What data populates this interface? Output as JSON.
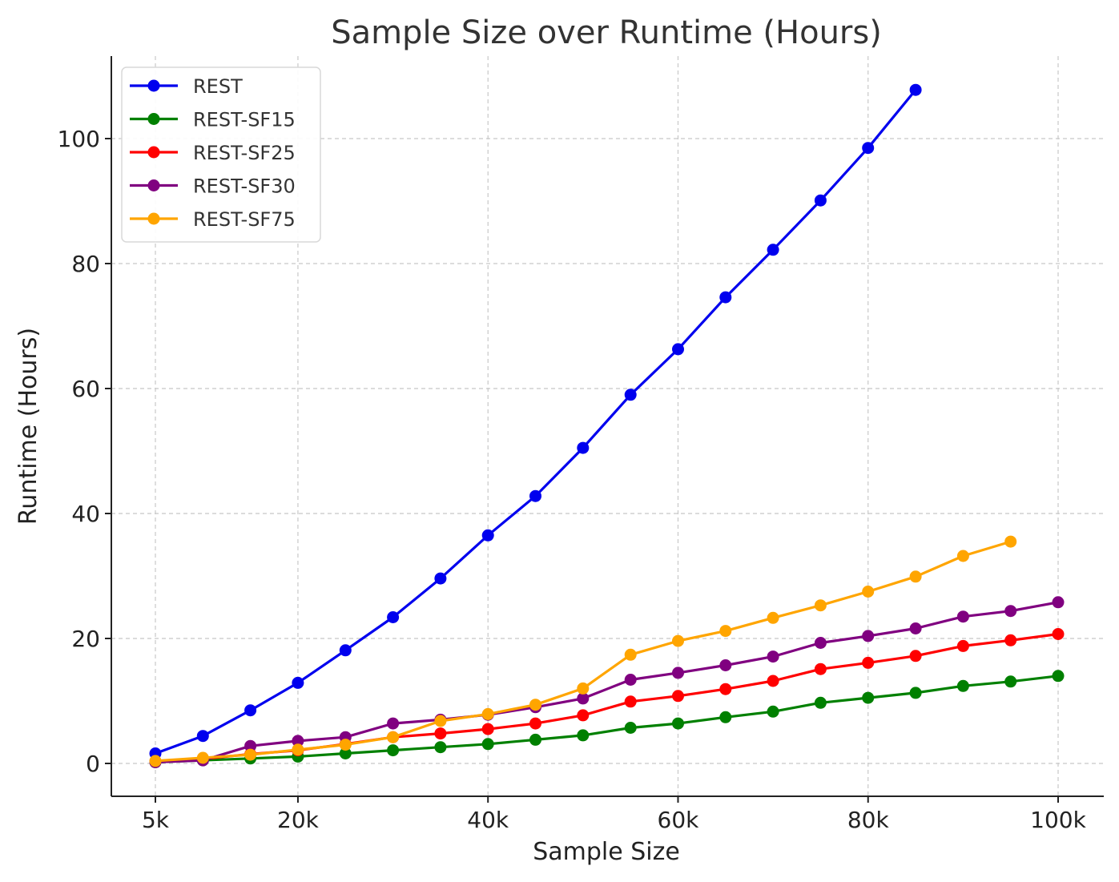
{
  "chart_data": {
    "type": "line",
    "title": "Sample Size over Runtime (Hours)",
    "xlabel": "Sample Size",
    "ylabel": "Runtime (Hours)",
    "xlim": [
      0,
      100000
    ],
    "ylim": [
      -5,
      113
    ],
    "x_ticks": [
      {
        "value": 5000,
        "label": "5k"
      },
      {
        "value": 20000,
        "label": "20k"
      },
      {
        "value": 40000,
        "label": "40k"
      },
      {
        "value": 60000,
        "label": "60k"
      },
      {
        "value": 80000,
        "label": "80k"
      },
      {
        "value": 100000,
        "label": "100k"
      }
    ],
    "y_ticks": [
      {
        "value": 0,
        "label": "0"
      },
      {
        "value": 20,
        "label": "20"
      },
      {
        "value": 40,
        "label": "40"
      },
      {
        "value": 60,
        "label": "60"
      },
      {
        "value": 80,
        "label": "80"
      },
      {
        "value": 100,
        "label": "100"
      }
    ],
    "x_gridlines": [
      5000,
      20000,
      40000,
      60000,
      80000,
      100000
    ],
    "y_gridlines": [
      0,
      20,
      40,
      60,
      80,
      100
    ],
    "grid": true,
    "legend_position": "top-left",
    "series": [
      {
        "name": "REST",
        "color": "#0000ee",
        "x": [
          5000,
          10000,
          15000,
          20000,
          25000,
          30000,
          35000,
          40000,
          45000,
          50000,
          55000,
          60000,
          65000,
          70000,
          75000,
          80000,
          85000
        ],
        "y": [
          1.6,
          4.4,
          8.5,
          12.9,
          18.1,
          23.4,
          29.6,
          36.5,
          42.8,
          50.5,
          59.0,
          66.3,
          74.6,
          82.2,
          90.1,
          98.5,
          107.8
        ]
      },
      {
        "name": "REST-SF15",
        "color": "#008000",
        "x": [
          5000,
          10000,
          15000,
          20000,
          25000,
          30000,
          35000,
          40000,
          45000,
          50000,
          55000,
          60000,
          65000,
          70000,
          75000,
          80000,
          85000,
          90000,
          95000,
          100000
        ],
        "y": [
          0.2,
          0.5,
          0.8,
          1.1,
          1.6,
          2.1,
          2.6,
          3.1,
          3.8,
          4.5,
          5.7,
          6.4,
          7.4,
          8.3,
          9.7,
          10.5,
          11.3,
          12.4,
          13.1,
          14.0
        ]
      },
      {
        "name": "REST-SF25",
        "color": "#ff0000",
        "x": [
          5000,
          10000,
          15000,
          20000,
          25000,
          30000,
          35000,
          40000,
          45000,
          50000,
          55000,
          60000,
          65000,
          70000,
          75000,
          80000,
          85000,
          90000,
          95000,
          100000
        ],
        "y": [
          0.3,
          0.7,
          1.5,
          2.1,
          3.1,
          4.2,
          4.8,
          5.5,
          6.4,
          7.7,
          9.9,
          10.8,
          11.9,
          13.2,
          15.1,
          16.1,
          17.2,
          18.8,
          19.7,
          20.7
        ]
      },
      {
        "name": "REST-SF30",
        "color": "#800080",
        "x": [
          5000,
          10000,
          15000,
          20000,
          25000,
          30000,
          35000,
          40000,
          45000,
          50000,
          55000,
          60000,
          65000,
          70000,
          75000,
          80000,
          85000,
          90000,
          95000,
          100000
        ],
        "y": [
          0.2,
          0.5,
          2.8,
          3.6,
          4.2,
          6.4,
          7.0,
          7.8,
          9.0,
          10.4,
          13.4,
          14.5,
          15.7,
          17.1,
          19.3,
          20.4,
          21.6,
          23.5,
          24.4,
          25.8
        ]
      },
      {
        "name": "REST-SF75",
        "color": "#ffa500",
        "x": [
          5000,
          10000,
          15000,
          20000,
          25000,
          30000,
          35000,
          40000,
          45000,
          50000,
          55000,
          60000,
          65000,
          70000,
          75000,
          80000,
          85000,
          90000,
          95000
        ],
        "y": [
          0.4,
          0.9,
          1.4,
          2.2,
          3.0,
          4.2,
          6.8,
          7.9,
          9.4,
          12.0,
          17.4,
          19.6,
          21.2,
          23.3,
          25.3,
          27.5,
          29.9,
          33.2,
          35.5
        ]
      }
    ]
  }
}
